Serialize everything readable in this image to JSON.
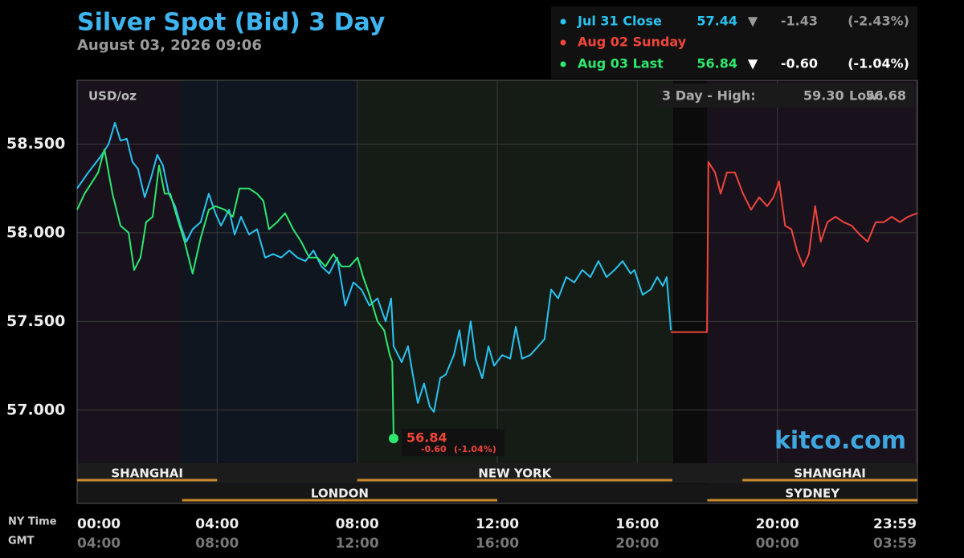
{
  "chart_data": {
    "type": "line",
    "title": "Silver Spot (Bid) 3 Day",
    "subtitle": "August 03, 2026 09:06",
    "unit_label": "USD/oz",
    "range_prefix": "3 Day - High:",
    "high": {
      "value": 59.3,
      "label": "59.30"
    },
    "low_prefix": "Low:",
    "low": 56.68,
    "watermark": "kitco.com",
    "x_row_label": "NY Time",
    "x2_row_label": "GMT",
    "xlim": [
      0,
      24
    ],
    "ylim": [
      56.7,
      58.86
    ],
    "xticks": [
      {
        "value": 0,
        "label": "00:00"
      },
      {
        "value": 4,
        "label": "04:00"
      },
      {
        "value": 8,
        "label": "08:00"
      },
      {
        "value": 12,
        "label": "12:00"
      },
      {
        "value": 16,
        "label": "16:00"
      },
      {
        "value": 20,
        "label": "20:00"
      },
      {
        "value": 23.98,
        "label": "23:59"
      }
    ],
    "x2ticks": [
      {
        "value": 0,
        "label": "04:00"
      },
      {
        "value": 4,
        "label": "08:00"
      },
      {
        "value": 8,
        "label": "12:00"
      },
      {
        "value": 12,
        "label": "16:00"
      },
      {
        "value": 16,
        "label": "20:00"
      },
      {
        "value": 20,
        "label": "00:00"
      },
      {
        "value": 23.98,
        "label": "03:59"
      }
    ],
    "yticks": [
      {
        "value": 57,
        "label": "57.000"
      },
      {
        "value": 57.5,
        "label": "57.500"
      },
      {
        "value": 58,
        "label": "58.000"
      },
      {
        "value": 58.5,
        "label": "58.500"
      }
    ],
    "grid": true,
    "sessions": [
      {
        "name": "SHANGHAI",
        "start": 0,
        "end": 4,
        "row": 1
      },
      {
        "name": "LONDON",
        "start": 3,
        "end": 12,
        "row": 2
      },
      {
        "name": "NEW YORK",
        "start": 8,
        "end": 17,
        "row": 1
      },
      {
        "name": "SHANGHAI",
        "start": 19,
        "end": 24,
        "row": 1
      },
      {
        "name": "SYDNEY",
        "start": 18,
        "end": 24,
        "row": 2
      }
    ],
    "series": [
      {
        "name": "Jul 31 Close",
        "color": "#29c3f0",
        "last": 57.44,
        "direction": "▼",
        "change": {
          "value": -1.43,
          "label": "-1.43"
        },
        "change_pct": {
          "value": -2.43,
          "label": "(-2.43%)"
        },
        "x": [
          0,
          0.32,
          0.67,
          0.9,
          1.08,
          1.24,
          1.42,
          1.58,
          1.74,
          1.93,
          2.11,
          2.29,
          2.45,
          2.62,
          2.8,
          2.96,
          3.12,
          3.3,
          3.53,
          3.76,
          3.95,
          4.11,
          4.34,
          4.5,
          4.68,
          4.91,
          5.14,
          5.37,
          5.6,
          5.83,
          6.06,
          6.29,
          6.52,
          6.75,
          6.98,
          7.2,
          7.43,
          7.66,
          7.89,
          8.12,
          8.35,
          8.58,
          8.81,
          8.97,
          9.04,
          9.27,
          9.45,
          9.57,
          9.73,
          9.91,
          10.07,
          10.19,
          10.37,
          10.53,
          10.76,
          10.92,
          11.06,
          11.24,
          11.38,
          11.57,
          11.75,
          11.91,
          12.14,
          12.37,
          12.53,
          12.71,
          12.94,
          13.17,
          13.35,
          13.54,
          13.74,
          13.97,
          14.2,
          14.43,
          14.66,
          14.89,
          15.12,
          15.35,
          15.58,
          15.81,
          15.92,
          16.15,
          16.38,
          16.57,
          16.73,
          16.84,
          16.96
        ],
        "values": [
          58.25,
          58.34,
          58.43,
          58.5,
          58.62,
          58.52,
          58.53,
          58.4,
          58.36,
          58.2,
          58.31,
          58.44,
          58.38,
          58.22,
          58.15,
          58.04,
          57.95,
          58.02,
          58.06,
          58.22,
          58.11,
          58.04,
          58.13,
          57.99,
          58.09,
          57.99,
          58.02,
          57.86,
          57.88,
          57.86,
          57.9,
          57.86,
          57.84,
          57.9,
          57.81,
          57.77,
          57.86,
          57.59,
          57.72,
          57.68,
          57.59,
          57.63,
          57.5,
          57.63,
          57.36,
          57.27,
          57.36,
          57.22,
          57.04,
          57.15,
          57.02,
          56.99,
          57.18,
          57.2,
          57.31,
          57.45,
          57.25,
          57.5,
          57.29,
          57.18,
          57.36,
          57.25,
          57.31,
          57.29,
          57.47,
          57.29,
          57.31,
          57.36,
          57.4,
          57.68,
          57.63,
          57.75,
          57.72,
          57.79,
          57.75,
          57.84,
          57.75,
          57.79,
          57.84,
          57.77,
          57.79,
          57.65,
          57.68,
          57.75,
          57.7,
          57.75,
          57.45
        ]
      },
      {
        "name": "Aug 02 Sunday",
        "color": "#f0453a",
        "x": [
          16.96,
          17.99,
          18.03,
          18.22,
          18.38,
          18.56,
          18.79,
          19.02,
          19.25,
          19.48,
          19.71,
          19.89,
          20.05,
          20.22,
          20.4,
          20.56,
          20.74,
          20.9,
          21.08,
          21.24,
          21.43,
          21.66,
          21.89,
          22.12,
          22.35,
          22.58,
          22.81,
          23.04,
          23.27,
          23.5,
          23.73,
          24
        ],
        "values": [
          57.44,
          57.44,
          58.4,
          58.34,
          58.22,
          58.34,
          58.34,
          58.22,
          58.13,
          58.2,
          58.15,
          58.2,
          58.29,
          58.04,
          58.02,
          57.9,
          57.81,
          57.88,
          58.15,
          57.95,
          58.06,
          58.09,
          58.06,
          58.04,
          57.99,
          57.95,
          58.06,
          58.06,
          58.09,
          58.06,
          58.09,
          58.11
        ]
      },
      {
        "name": "Aug 03 Last",
        "color": "#2ee86e",
        "last": 56.84,
        "direction": "▼",
        "change": {
          "value": -0.6,
          "label": "-0.60"
        },
        "change_pct": {
          "value": -1.04,
          "label": "(-1.04%)"
        },
        "x": [
          0,
          0.21,
          0.44,
          0.6,
          0.78,
          1.01,
          1.24,
          1.47,
          1.63,
          1.81,
          1.97,
          2.16,
          2.34,
          2.5,
          2.66,
          2.85,
          3.07,
          3.3,
          3.53,
          3.76,
          3.95,
          4.22,
          4.45,
          4.64,
          4.91,
          5.14,
          5.32,
          5.48,
          5.71,
          5.94,
          6.17,
          6.4,
          6.63,
          6.86,
          7.09,
          7.32,
          7.55,
          7.78,
          8.01,
          8.17,
          8.35,
          8.58,
          8.77,
          8.93,
          9,
          9.04
        ],
        "values": [
          58.13,
          58.22,
          58.29,
          58.34,
          58.47,
          58.22,
          58.04,
          58,
          57.79,
          57.86,
          58.06,
          58.09,
          58.38,
          58.22,
          58.22,
          58.09,
          57.95,
          57.77,
          57.97,
          58.13,
          58.15,
          58.13,
          58.09,
          58.25,
          58.25,
          58.22,
          58.18,
          58.02,
          58.06,
          58.11,
          58.02,
          57.95,
          57.86,
          57.86,
          57.81,
          57.88,
          57.81,
          57.81,
          57.86,
          57.75,
          57.65,
          57.5,
          57.45,
          57.31,
          57.27,
          56.84
        ]
      }
    ]
  }
}
